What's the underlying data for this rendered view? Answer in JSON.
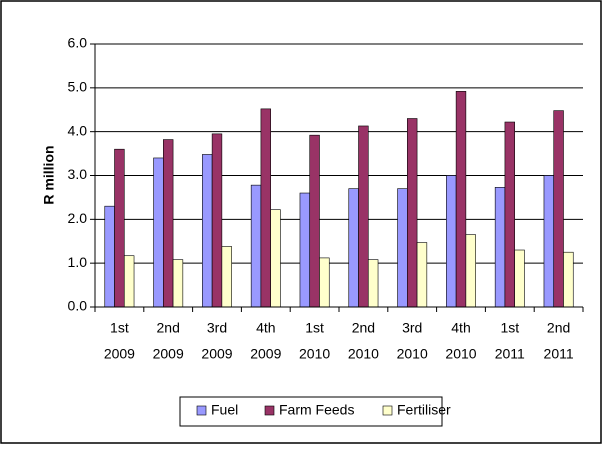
{
  "chart_data": {
    "type": "bar",
    "y_label": "R million",
    "categories": [
      [
        "1st",
        "2009"
      ],
      [
        "2nd",
        "2009"
      ],
      [
        "3rd",
        "2009"
      ],
      [
        "4th",
        "2009"
      ],
      [
        "1st",
        "2010"
      ],
      [
        "2nd",
        "2010"
      ],
      [
        "3rd",
        "2010"
      ],
      [
        "4th",
        "2010"
      ],
      [
        "1st",
        "2011"
      ],
      [
        "2nd",
        "2011"
      ]
    ],
    "series": [
      {
        "name": "Fuel",
        "color": "#9999ff",
        "values": [
          2.3,
          3.4,
          3.48,
          2.78,
          2.6,
          2.7,
          2.7,
          3.0,
          2.73,
          3.0
        ]
      },
      {
        "name": "Farm Feeds",
        "color": "#993366",
        "values": [
          3.6,
          3.82,
          3.95,
          4.52,
          3.92,
          4.13,
          4.3,
          4.92,
          4.22,
          4.48
        ]
      },
      {
        "name": "Fertiliser",
        "color": "#ffffcc",
        "values": [
          1.17,
          1.08,
          1.38,
          2.22,
          1.12,
          1.08,
          1.47,
          1.65,
          1.3,
          1.25
        ]
      }
    ],
    "ylim": [
      0,
      6
    ],
    "yticks": [
      {
        "value": 0,
        "label": "0.0"
      },
      {
        "value": 1,
        "label": "1.0"
      },
      {
        "value": 2,
        "label": "2.0"
      },
      {
        "value": 3,
        "label": "3.0"
      },
      {
        "value": 4,
        "label": "4.0"
      },
      {
        "value": 5,
        "label": "5.0"
      },
      {
        "value": 6,
        "label": "6.0"
      }
    ],
    "grid": true,
    "legend": "bottom"
  }
}
